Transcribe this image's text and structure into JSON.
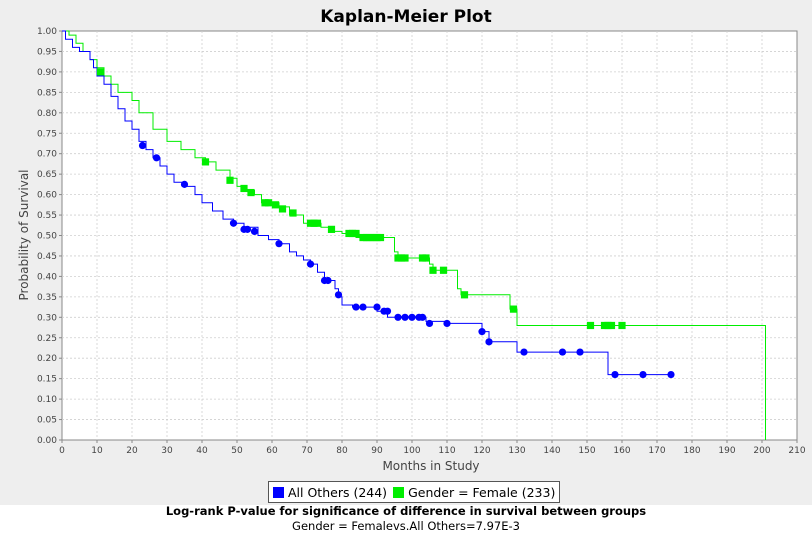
{
  "chart_data": {
    "type": "line",
    "title": "Kaplan-Meier Plot",
    "xlabel": "Months in Study",
    "ylabel": "Probability of Survival",
    "xlim": [
      0,
      210
    ],
    "ylim": [
      0,
      1
    ],
    "xticks": [
      0,
      10,
      20,
      30,
      40,
      50,
      60,
      70,
      80,
      90,
      100,
      110,
      120,
      130,
      140,
      150,
      160,
      170,
      180,
      190,
      200,
      210
    ],
    "yticks": [
      "0.00",
      "0.05",
      "0.10",
      "0.15",
      "0.20",
      "0.25",
      "0.30",
      "0.35",
      "0.40",
      "0.45",
      "0.50",
      "0.55",
      "0.60",
      "0.65",
      "0.70",
      "0.75",
      "0.80",
      "0.85",
      "0.90",
      "0.95",
      "1.00"
    ],
    "grid": true,
    "legend_position": "bottom",
    "series": [
      {
        "name": "All Others (244)",
        "color": "#0000ff",
        "curve": [
          [
            0,
            1.0
          ],
          [
            1,
            0.98
          ],
          [
            3,
            0.96
          ],
          [
            5,
            0.95
          ],
          [
            8,
            0.93
          ],
          [
            9,
            0.91
          ],
          [
            10,
            0.89
          ],
          [
            12,
            0.87
          ],
          [
            14,
            0.84
          ],
          [
            16,
            0.81
          ],
          [
            18,
            0.78
          ],
          [
            20,
            0.76
          ],
          [
            22,
            0.73
          ],
          [
            24,
            0.71
          ],
          [
            26,
            0.69
          ],
          [
            28,
            0.67
          ],
          [
            30,
            0.65
          ],
          [
            32,
            0.63
          ],
          [
            35,
            0.62
          ],
          [
            38,
            0.6
          ],
          [
            40,
            0.58
          ],
          [
            43,
            0.56
          ],
          [
            46,
            0.54
          ],
          [
            49,
            0.53
          ],
          [
            52,
            0.52
          ],
          [
            56,
            0.5
          ],
          [
            59,
            0.49
          ],
          [
            62,
            0.48
          ],
          [
            65,
            0.46
          ],
          [
            67,
            0.45
          ],
          [
            69,
            0.44
          ],
          [
            71,
            0.43
          ],
          [
            73,
            0.41
          ],
          [
            75,
            0.39
          ],
          [
            78,
            0.37
          ],
          [
            79,
            0.35
          ],
          [
            80,
            0.33
          ],
          [
            83,
            0.325
          ],
          [
            88,
            0.325
          ],
          [
            90,
            0.315
          ],
          [
            93,
            0.3
          ],
          [
            102,
            0.3
          ],
          [
            104,
            0.29
          ],
          [
            110,
            0.285
          ],
          [
            119,
            0.285
          ],
          [
            120,
            0.265
          ],
          [
            122,
            0.24
          ],
          [
            130,
            0.215
          ],
          [
            155,
            0.215
          ],
          [
            156,
            0.16
          ],
          [
            174,
            0.16
          ]
        ],
        "censored": [
          [
            23,
            0.72
          ],
          [
            27,
            0.69
          ],
          [
            35,
            0.625
          ],
          [
            49,
            0.53
          ],
          [
            52,
            0.515
          ],
          [
            53,
            0.515
          ],
          [
            55,
            0.51
          ],
          [
            62,
            0.48
          ],
          [
            71,
            0.43
          ],
          [
            75,
            0.39
          ],
          [
            76,
            0.39
          ],
          [
            79,
            0.355
          ],
          [
            84,
            0.325
          ],
          [
            86,
            0.325
          ],
          [
            90,
            0.325
          ],
          [
            92,
            0.315
          ],
          [
            93,
            0.315
          ],
          [
            96,
            0.3
          ],
          [
            98,
            0.3
          ],
          [
            100,
            0.3
          ],
          [
            102,
            0.3
          ],
          [
            103,
            0.3
          ],
          [
            105,
            0.285
          ],
          [
            110,
            0.285
          ],
          [
            120,
            0.265
          ],
          [
            122,
            0.24
          ],
          [
            132,
            0.215
          ],
          [
            143,
            0.215
          ],
          [
            148,
            0.215
          ],
          [
            158,
            0.16
          ],
          [
            166,
            0.16
          ],
          [
            174,
            0.16
          ]
        ]
      },
      {
        "name": "Gender = Female (233)",
        "color": "#00ee00",
        "curve": [
          [
            0,
            1.0
          ],
          [
            2,
            0.99
          ],
          [
            4,
            0.97
          ],
          [
            6,
            0.95
          ],
          [
            8,
            0.93
          ],
          [
            10,
            0.91
          ],
          [
            12,
            0.89
          ],
          [
            14,
            0.87
          ],
          [
            16,
            0.85
          ],
          [
            20,
            0.83
          ],
          [
            22,
            0.8
          ],
          [
            26,
            0.76
          ],
          [
            30,
            0.73
          ],
          [
            34,
            0.71
          ],
          [
            38,
            0.69
          ],
          [
            41,
            0.68
          ],
          [
            44,
            0.66
          ],
          [
            48,
            0.64
          ],
          [
            50,
            0.62
          ],
          [
            52,
            0.61
          ],
          [
            55,
            0.6
          ],
          [
            57,
            0.58
          ],
          [
            62,
            0.57
          ],
          [
            65,
            0.55
          ],
          [
            69,
            0.53
          ],
          [
            74,
            0.52
          ],
          [
            77,
            0.51
          ],
          [
            80,
            0.505
          ],
          [
            84,
            0.495
          ],
          [
            93,
            0.495
          ],
          [
            95,
            0.46
          ],
          [
            96,
            0.445
          ],
          [
            102,
            0.445
          ],
          [
            105,
            0.43
          ],
          [
            106,
            0.415
          ],
          [
            110,
            0.415
          ],
          [
            113,
            0.37
          ],
          [
            114,
            0.355
          ],
          [
            127,
            0.355
          ],
          [
            128,
            0.32
          ],
          [
            130,
            0.28
          ],
          [
            201,
            0.28
          ],
          [
            201,
            0.0
          ]
        ],
        "censored": [
          [
            11,
            0.9
          ],
          [
            41,
            0.68
          ],
          [
            48,
            0.635
          ],
          [
            52,
            0.615
          ],
          [
            54,
            0.605
          ],
          [
            58,
            0.58
          ],
          [
            59,
            0.58
          ],
          [
            61,
            0.575
          ],
          [
            63,
            0.565
          ],
          [
            66,
            0.555
          ],
          [
            71,
            0.53
          ],
          [
            72,
            0.53
          ],
          [
            73,
            0.53
          ],
          [
            77,
            0.515
          ],
          [
            82,
            0.505
          ],
          [
            83,
            0.505
          ],
          [
            84,
            0.505
          ],
          [
            86,
            0.495
          ],
          [
            87,
            0.495
          ],
          [
            88,
            0.495
          ],
          [
            89,
            0.495
          ],
          [
            90,
            0.495
          ],
          [
            91,
            0.495
          ],
          [
            96,
            0.445
          ],
          [
            97,
            0.445
          ],
          [
            98,
            0.445
          ],
          [
            103,
            0.445
          ],
          [
            104,
            0.445
          ],
          [
            106,
            0.415
          ],
          [
            109,
            0.415
          ],
          [
            115,
            0.355
          ],
          [
            129,
            0.32
          ],
          [
            151,
            0.28
          ],
          [
            155,
            0.28
          ],
          [
            156,
            0.28
          ],
          [
            157,
            0.28
          ],
          [
            160,
            0.28
          ]
        ]
      }
    ]
  },
  "footer": {
    "title": "Log-rank P-value for significance of difference in survival between groups",
    "value": "Gender = Femalevs.All Others=7.97E-3"
  }
}
